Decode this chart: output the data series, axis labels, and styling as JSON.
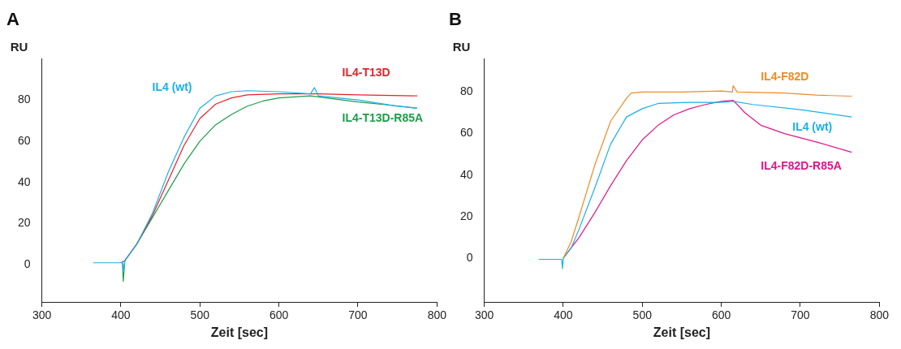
{
  "chart_data": [
    {
      "type": "line",
      "title": "A",
      "xlabel": "Zeit [sec]",
      "ylabel": "RU",
      "xlim": [
        300,
        800
      ],
      "xticks": [
        300,
        400,
        500,
        600,
        700,
        800
      ],
      "ylim": [
        -18,
        100
      ],
      "yticks": [
        0,
        20,
        40,
        60,
        80
      ],
      "grid": false,
      "legend": false,
      "marker": "none",
      "series": [
        {
          "name": "IL4 (wt)",
          "color": "#1ab0e8",
          "x": [
            365,
            380,
            400,
            402,
            403,
            405,
            420,
            440,
            460,
            480,
            500,
            520,
            540,
            560,
            600,
            640,
            645,
            650,
            700,
            750,
            775
          ],
          "values": [
            1,
            1,
            1,
            1,
            -3,
            2,
            10,
            25,
            45,
            62,
            76,
            82,
            84,
            84.5,
            84,
            83,
            86,
            82,
            80,
            77,
            76
          ]
        },
        {
          "name": "IL4-T13D",
          "color": "#e8212a",
          "x": [
            400,
            405,
            420,
            440,
            460,
            480,
            500,
            520,
            540,
            560,
            600,
            650,
            700,
            775
          ],
          "values": [
            1,
            2,
            10,
            24,
            41,
            58,
            71,
            78,
            81,
            82.5,
            83,
            83,
            82.5,
            82
          ]
        },
        {
          "name": "IL4-T13D-R85A",
          "color": "#1a9e48",
          "x": [
            402,
            403,
            405,
            420,
            440,
            460,
            480,
            500,
            520,
            540,
            560,
            580,
            600,
            640,
            660,
            700,
            740,
            775
          ],
          "values": [
            1,
            -8,
            2,
            10,
            23,
            36,
            49,
            60,
            68,
            73,
            77,
            79.5,
            81,
            82,
            81,
            79,
            77.5,
            76
          ]
        }
      ]
    },
    {
      "type": "line",
      "title": "B",
      "xlabel": "Zeit [sec]",
      "ylabel": "RU",
      "xlim": [
        300,
        800
      ],
      "xticks": [
        300,
        400,
        500,
        600,
        700,
        800
      ],
      "ylim": [
        -21,
        96
      ],
      "yticks": [
        0,
        20,
        40,
        60,
        80
      ],
      "grid": false,
      "legend": false,
      "marker": "none",
      "series": [
        {
          "name": "IL4-F82D",
          "color": "#f08a24",
          "x": [
            400,
            410,
            420,
            440,
            460,
            480,
            486,
            500,
            550,
            600,
            614,
            615,
            620,
            680,
            720,
            765
          ],
          "values": [
            0,
            8,
            20,
            45,
            66,
            77,
            79.5,
            80,
            80,
            80.5,
            80,
            83,
            80,
            79.5,
            78.5,
            78
          ]
        },
        {
          "name": "IL4 (wt)",
          "color": "#1ab0e8",
          "x": [
            369,
            385,
            398,
            399,
            400,
            410,
            420,
            440,
            460,
            480,
            500,
            520,
            560,
            600,
            615,
            640,
            700,
            765
          ],
          "values": [
            -0.5,
            -0.5,
            -0.5,
            -5,
            0,
            5,
            14,
            34,
            55,
            68,
            72,
            74.5,
            75,
            75,
            75.5,
            74,
            71.5,
            68
          ]
        },
        {
          "name": "IL4-F82D-R85A",
          "color": "#e0168a",
          "x": [
            400,
            410,
            420,
            440,
            460,
            480,
            500,
            520,
            540,
            560,
            580,
            600,
            615,
            630,
            650,
            680,
            720,
            765
          ],
          "values": [
            0,
            5,
            10,
            22,
            35,
            47,
            57,
            64,
            69,
            72,
            74,
            75.5,
            76,
            70,
            64,
            60,
            56,
            51
          ]
        }
      ]
    }
  ]
}
